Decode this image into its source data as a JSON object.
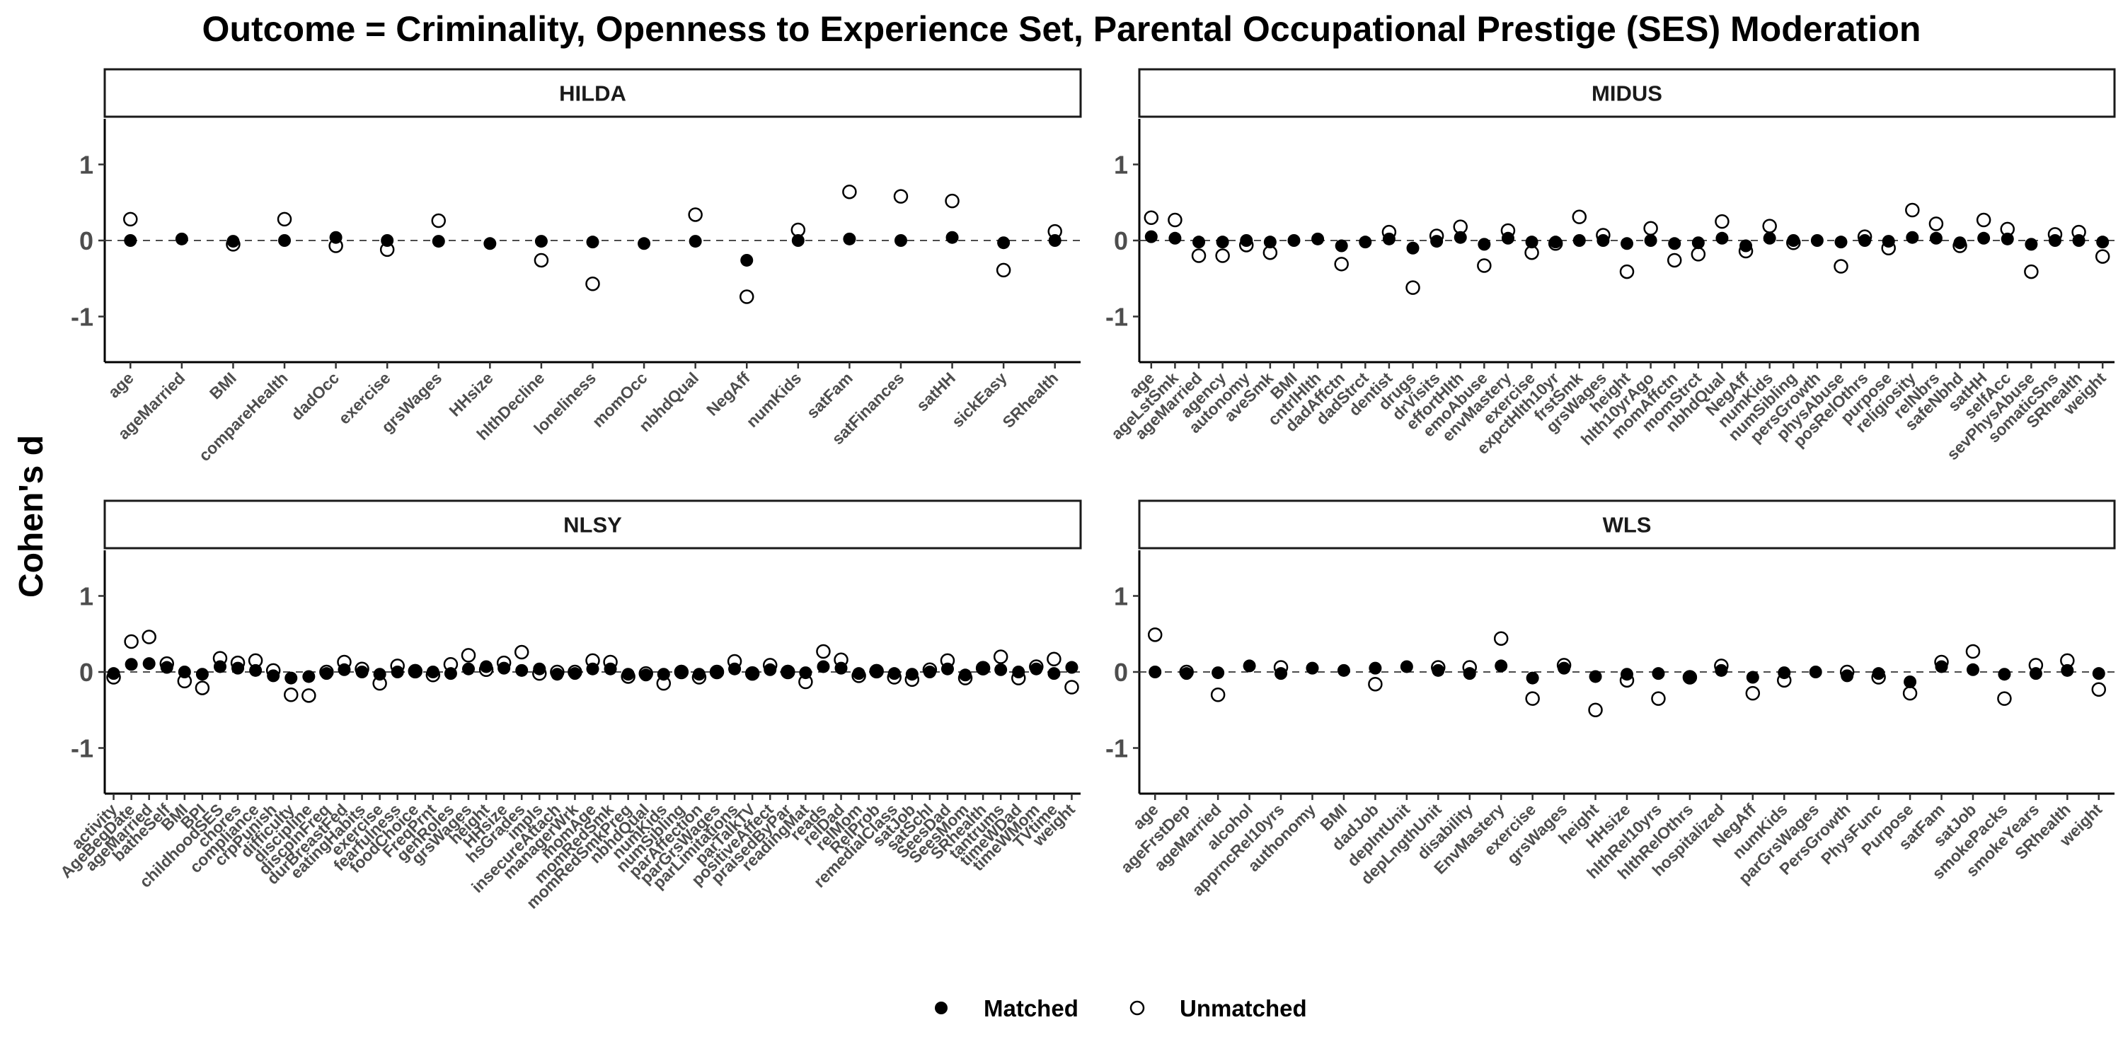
{
  "chart_data": {
    "type": "scatter",
    "title": "Outcome = Criminality, Openness to Experience Set, Parental Occupational Prestige (SES) Moderation",
    "ylabel": "Cohen's d",
    "ylim": [
      -1.6,
      1.6
    ],
    "yticks": [
      -1,
      0,
      1
    ],
    "reference_line": 0,
    "legend": {
      "placement": "bottom",
      "entries": [
        "Matched",
        "Unmatched"
      ]
    },
    "series_styles": {
      "Matched": "filled-circle",
      "Unmatched": "open-circle"
    },
    "panels": [
      {
        "name": "HILDA",
        "categories": [
          "age",
          "ageMarried",
          "BMI",
          "compareHealth",
          "dadOcc",
          "exercise",
          "grsWages",
          "HHsize",
          "hlthDecline",
          "loneliness",
          "momOcc",
          "nbhdQual",
          "NegAff",
          "numKids",
          "satFam",
          "satFinances",
          "satHH",
          "sickEasy",
          "SRhealth"
        ],
        "matched": [
          0.0,
          0.02,
          -0.01,
          0.0,
          0.04,
          0.0,
          -0.01,
          -0.04,
          -0.01,
          -0.02,
          -0.04,
          -0.01,
          -0.26,
          0.0,
          0.02,
          0.0,
          0.04,
          -0.03,
          0.0
        ],
        "unmatched": [
          0.28,
          null,
          -0.05,
          0.28,
          -0.07,
          -0.12,
          0.26,
          null,
          -0.26,
          -0.57,
          null,
          0.34,
          -0.74,
          0.14,
          0.64,
          0.58,
          0.52,
          -0.39,
          0.12
        ]
      },
      {
        "name": "MIDUS",
        "categories": [
          "age",
          "ageLstSmk",
          "ageMarried",
          "agency",
          "autonomy",
          "aveSmk",
          "BMI",
          "cntrlHlth",
          "dadAffctn",
          "dadStrct",
          "dentist",
          "drugs",
          "drVisits",
          "effortHlth",
          "emoAbuse",
          "envMastery",
          "exercise",
          "expctHlth10yr",
          "frstSmk",
          "grsWages",
          "height",
          "hlth10yrAgo",
          "momAffctn",
          "momStrct",
          "nbhdQual",
          "NegAff",
          "numKids",
          "numSibling",
          "persGrowth",
          "physAbuse",
          "posRelOthrs",
          "purpose",
          "religiosity",
          "relNbrs",
          "safeNbhd",
          "satHH",
          "selfAcc",
          "sevPhysAbuse",
          "somaticSns",
          "SRhealth",
          "weight"
        ],
        "matched": [
          0.05,
          0.03,
          -0.02,
          -0.02,
          0.0,
          -0.02,
          0.0,
          0.02,
          -0.07,
          -0.02,
          0.02,
          -0.1,
          -0.01,
          0.04,
          -0.05,
          0.03,
          -0.02,
          -0.02,
          0.0,
          0.0,
          -0.04,
          0.0,
          -0.04,
          -0.03,
          0.03,
          -0.07,
          0.03,
          0.0,
          0.0,
          -0.02,
          0.0,
          -0.01,
          0.04,
          0.03,
          -0.03,
          0.03,
          0.02,
          -0.05,
          0.0,
          0.0,
          -0.02
        ],
        "unmatched": [
          0.3,
          0.27,
          -0.2,
          -0.2,
          -0.06,
          -0.16,
          null,
          null,
          -0.31,
          null,
          0.11,
          -0.62,
          0.06,
          0.18,
          -0.33,
          0.13,
          -0.16,
          -0.04,
          0.31,
          0.07,
          -0.41,
          0.16,
          -0.26,
          -0.18,
          0.25,
          -0.14,
          0.19,
          -0.03,
          null,
          -0.34,
          0.05,
          -0.1,
          0.4,
          0.22,
          -0.07,
          0.27,
          0.15,
          -0.41,
          0.08,
          0.11,
          -0.21
        ]
      },
      {
        "name": "NLSY",
        "categories": [
          "activity",
          "AgeBegDate",
          "ageMarried",
          "batheSelf",
          "BMI",
          "BPI",
          "childhoodSES",
          "chores",
          "compliance",
          "crpPunish",
          "difficulty",
          "discipline",
          "discpinFreq",
          "durBreastFed",
          "eatingHabits",
          "exercise",
          "fearfulness",
          "foodChoice",
          "FreqPrnt",
          "genRoles",
          "grsWages",
          "height",
          "HHsize",
          "hsGrades",
          "impls",
          "insecureAttach",
          "managerWrk",
          "momAge",
          "momRedSmk",
          "momRedSmkPreg",
          "nbhdQual",
          "numKids",
          "numSibling",
          "parAffection",
          "parGrsWages",
          "parLimitations",
          "parTalkTV",
          "positiveAffect",
          "praisedByPar",
          "readingMat",
          "reads",
          "relDad",
          "relMom",
          "RelProb",
          "remedialClass",
          "satJob",
          "satSchl",
          "SeesDad",
          "SeesMom",
          "SRhealth",
          "tantrums",
          "timeWDad",
          "timeWMom",
          "TVtime",
          "weight"
        ],
        "matched": [
          -0.02,
          0.1,
          0.11,
          0.06,
          0.0,
          -0.03,
          0.07,
          0.05,
          0.02,
          -0.05,
          -0.08,
          -0.06,
          -0.02,
          0.03,
          0.0,
          -0.03,
          0.0,
          0.0,
          0.0,
          -0.02,
          0.04,
          0.07,
          0.05,
          0.02,
          0.04,
          -0.03,
          -0.02,
          0.04,
          0.04,
          -0.03,
          -0.04,
          -0.03,
          0.01,
          -0.03,
          -0.01,
          0.04,
          -0.02,
          0.03,
          0.01,
          -0.01,
          0.07,
          0.05,
          -0.02,
          0.0,
          -0.02,
          -0.03,
          0.0,
          0.04,
          -0.04,
          0.04,
          0.03,
          0.0,
          0.04,
          -0.02,
          0.06
        ],
        "unmatched": [
          -0.07,
          0.4,
          0.46,
          0.11,
          -0.12,
          -0.21,
          0.18,
          0.12,
          0.15,
          0.02,
          -0.3,
          -0.31,
          0.0,
          0.13,
          0.04,
          -0.15,
          0.08,
          0.01,
          -0.04,
          0.1,
          0.22,
          0.03,
          0.12,
          0.26,
          -0.02,
          0.0,
          0.0,
          0.15,
          0.13,
          -0.06,
          -0.02,
          -0.15,
          0.0,
          -0.07,
          0.0,
          0.14,
          -0.02,
          0.09,
          0.0,
          -0.13,
          0.27,
          0.16,
          -0.05,
          0.01,
          -0.07,
          -0.1,
          0.03,
          0.15,
          -0.08,
          0.05,
          0.2,
          -0.08,
          0.07,
          0.17,
          -0.2
        ]
      },
      {
        "name": "WLS",
        "categories": [
          "age",
          "ageFrstDep",
          "ageMarried",
          "alcohol",
          "apprncRel10yrs",
          "authonomy",
          "BMI",
          "dadJob",
          "depIntUnit",
          "depLngthUnit",
          "disability",
          "EnvMastery",
          "exercise",
          "grsWages",
          "height",
          "HHsize",
          "hlthRel10yrs",
          "hlthRelOthrs",
          "hospitalized",
          "NegAff",
          "numKids",
          "parGrsWages",
          "PersGrowth",
          "PhysFunc",
          "Purpose",
          "satFam",
          "satJob",
          "smokePacks",
          "smokeYears",
          "SRhealth",
          "weight"
        ],
        "matched": [
          0.0,
          -0.02,
          -0.01,
          0.08,
          -0.02,
          0.05,
          0.02,
          0.05,
          0.07,
          0.02,
          -0.02,
          0.08,
          -0.08,
          0.05,
          -0.06,
          -0.03,
          -0.02,
          -0.07,
          0.02,
          -0.07,
          -0.01,
          0.0,
          -0.05,
          -0.02,
          -0.13,
          0.07,
          0.03,
          -0.03,
          -0.02,
          0.02,
          -0.02
        ],
        "unmatched": [
          0.49,
          0.0,
          -0.3,
          null,
          0.06,
          null,
          null,
          -0.16,
          null,
          0.06,
          0.06,
          0.44,
          -0.35,
          0.09,
          -0.5,
          -0.11,
          -0.35,
          -0.07,
          0.08,
          -0.28,
          -0.11,
          null,
          0.0,
          -0.07,
          -0.28,
          0.13,
          0.27,
          -0.35,
          0.09,
          0.15,
          -0.23
        ]
      }
    ]
  }
}
